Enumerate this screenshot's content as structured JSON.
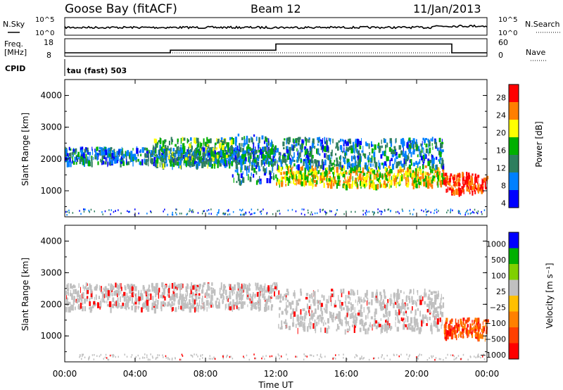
{
  "header": {
    "station": "Goose Bay (fitACF)",
    "beam": "Beam 12",
    "date": "11/Jan/2013"
  },
  "noise_panel": {
    "left_label": "N.Sky",
    "right_label": "N.Search",
    "left_ticks": [
      "10^5",
      "10^0"
    ],
    "right_ticks": [
      "10^5",
      "10^0"
    ]
  },
  "freq_panel": {
    "left_label_line1": "Freq.",
    "left_label_line2": "[MHz]",
    "right_label": "Nave",
    "left_ticks": [
      "18",
      "8"
    ],
    "right_ticks": [
      "60",
      "0"
    ],
    "freq_mhz": [
      {
        "t": 0,
        "v": 10
      },
      {
        "t": 6,
        "v": 10
      },
      {
        "t": 6,
        "v": 11.5
      },
      {
        "t": 12,
        "v": 11.5
      },
      {
        "t": 12,
        "v": 15
      },
      {
        "t": 22,
        "v": 15
      },
      {
        "t": 22,
        "v": 10
      },
      {
        "t": 24,
        "v": 10
      }
    ]
  },
  "cpid": {
    "label": "CPID",
    "text": "tau (fast) 503"
  },
  "chart_data": [
    {
      "type": "heatmap",
      "name": "power",
      "xlabel": "",
      "ylabel": "Slant Range [km]",
      "colorbar_label": "Power [dB]",
      "colorbar_ticks": [
        "28",
        "24",
        "20",
        "16",
        "12",
        "8",
        "4"
      ],
      "colorbar_colors": [
        "#ff0000",
        "#ff7f00",
        "#ffff00",
        "#00b000",
        "#2e7e5e",
        "#0080ff",
        "#0000ff"
      ],
      "y_ticks": [
        "4000",
        "3000",
        "2000",
        "1000"
      ],
      "ylim": [
        180,
        4500
      ],
      "xlim": [
        0,
        24
      ],
      "bands": [
        {
          "t": [
            0,
            12
          ],
          "r": [
            1900,
            2400
          ],
          "db": 10
        },
        {
          "t": [
            5,
            9.5
          ],
          "r": [
            1800,
            2700
          ],
          "db": 14
        },
        {
          "t": [
            9.5,
            12
          ],
          "r": [
            1300,
            2800
          ],
          "db": 10
        },
        {
          "t": [
            12,
            21.5
          ],
          "r": [
            1200,
            1800
          ],
          "db": 20
        },
        {
          "t": [
            12,
            21.5
          ],
          "r": [
            1800,
            2700
          ],
          "db": 10
        },
        {
          "t": [
            21.5,
            24
          ],
          "r": [
            1000,
            1600
          ],
          "db": 28
        }
      ]
    },
    {
      "type": "heatmap",
      "name": "velocity",
      "xlabel": "Time UT",
      "ylabel": "Slant Range [km]",
      "colorbar_label": "Velocity [m s⁻¹]",
      "colorbar_ticks": [
        "1000",
        "500",
        "100",
        "25",
        "−25",
        "−100",
        "−500",
        "−1000"
      ],
      "colorbar_colors": [
        "#0000ff",
        "#00b000",
        "#80d000",
        "#c0c0c0",
        "#ffc000",
        "#ff8000",
        "#ff4000",
        "#ff0000"
      ],
      "y_ticks": [
        "4000",
        "3000",
        "2000",
        "1000"
      ],
      "x_ticks": [
        "00:00",
        "04:00",
        "08:00",
        "12:00",
        "16:00",
        "20:00",
        "00:00"
      ],
      "ylim": [
        180,
        4500
      ],
      "xlim": [
        0,
        24
      ],
      "bands": [
        {
          "t": [
            0,
            12
          ],
          "r": [
            1900,
            2700
          ],
          "v": 0
        },
        {
          "t": [
            12,
            21.5
          ],
          "r": [
            1200,
            2500
          ],
          "v": 0
        },
        {
          "t": [
            21.5,
            24
          ],
          "r": [
            1000,
            1600
          ],
          "v": -500
        }
      ]
    }
  ],
  "time_axis": {
    "ticks": [
      "00:00",
      "04:00",
      "08:00",
      "12:00",
      "16:00",
      "20:00",
      "00:00"
    ],
    "label": "Time UT"
  },
  "colors": {
    "axis": "#000000"
  }
}
